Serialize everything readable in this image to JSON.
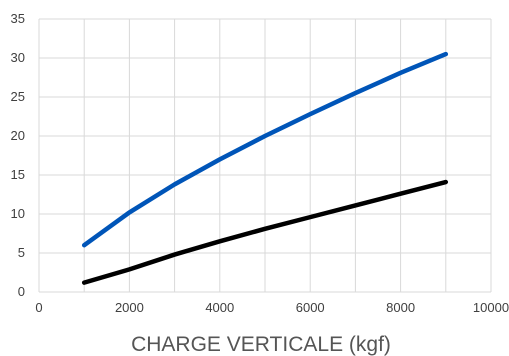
{
  "chart_data": {
    "type": "line",
    "title": "",
    "xlabel": "CHARGE VERTICALE  (kgf)",
    "ylabel": "",
    "xlim": [
      0,
      10000
    ],
    "ylim": [
      0,
      35
    ],
    "x_ticks": [
      0,
      2000,
      4000,
      6000,
      8000,
      10000
    ],
    "y_ticks": [
      0,
      5,
      10,
      15,
      20,
      25,
      30,
      35
    ],
    "grid": true,
    "legend": "none",
    "series": [
      {
        "color": "#0055b8",
        "x": [
          1000,
          2000,
          3000,
          4000,
          5000,
          6000,
          7000,
          8000,
          9000
        ],
        "y": [
          6.0,
          10.2,
          13.8,
          17.0,
          20.0,
          22.8,
          25.5,
          28.1,
          30.5
        ]
      },
      {
        "color": "#000000",
        "x": [
          1000,
          2000,
          3000,
          4000,
          5000,
          6000,
          7000,
          8000,
          9000
        ],
        "y": [
          1.2,
          2.9,
          4.8,
          6.5,
          8.1,
          9.6,
          11.1,
          12.6,
          14.1
        ]
      }
    ]
  }
}
